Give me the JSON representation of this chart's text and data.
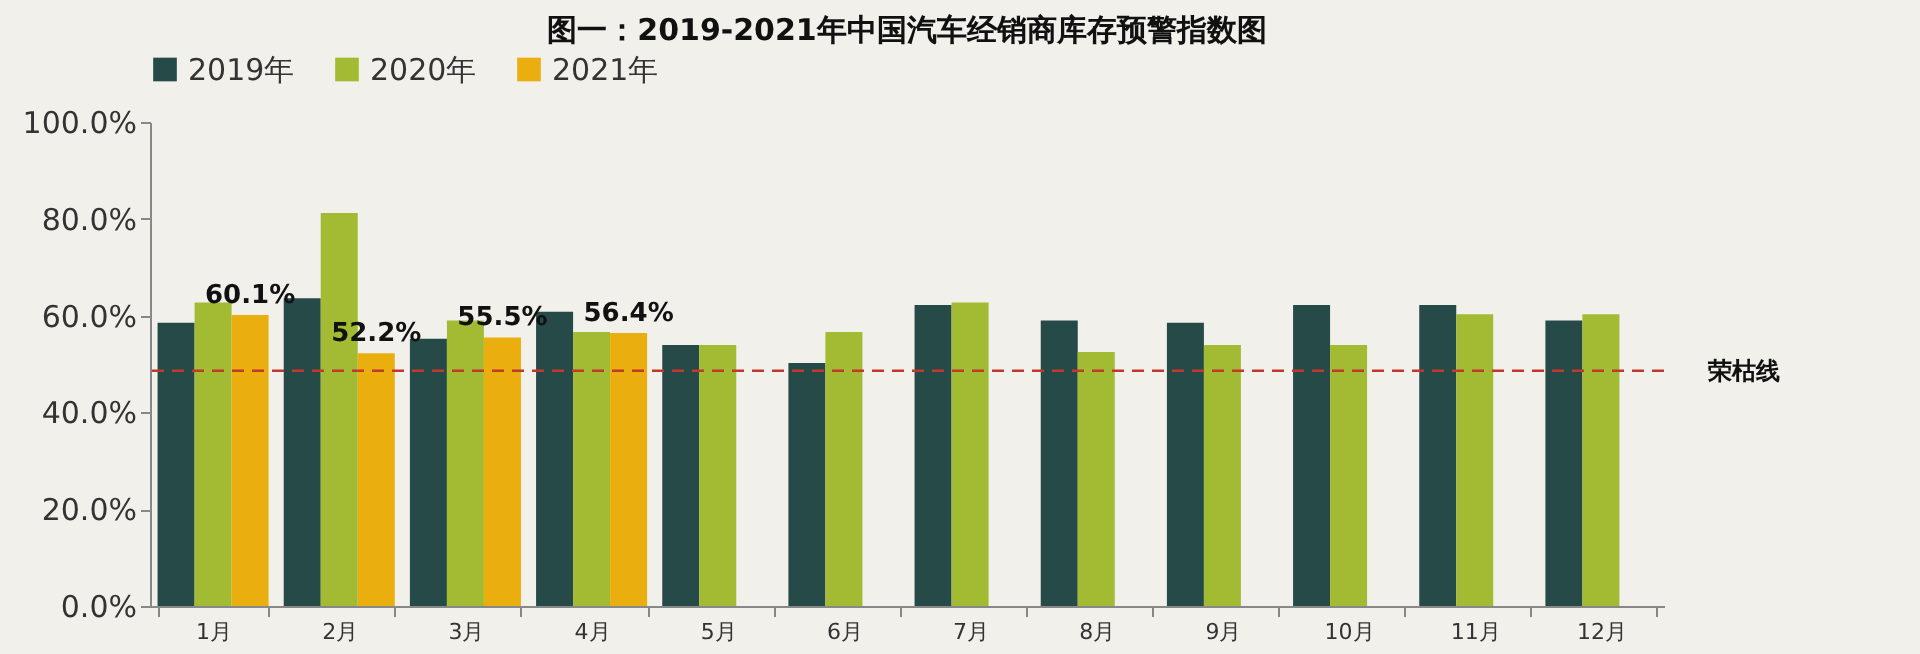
{
  "chart_data": {
    "type": "bar",
    "title": "图一：2019-2021年中国汽车经销商库存预警指数图",
    "categories": [
      "1月",
      "2月",
      "3月",
      "4月",
      "5月",
      "6月",
      "7月",
      "8月",
      "9月",
      "10月",
      "11月",
      "12月"
    ],
    "series": [
      {
        "name": "2019年",
        "color": "#264a48",
        "values": [
          58.5,
          63.6,
          55.2,
          60.8,
          53.9,
          50.2,
          62.2,
          59.0,
          58.5,
          62.2,
          62.2,
          59.0
        ]
      },
      {
        "name": "2020年",
        "color": "#a3bb33",
        "values": [
          62.7,
          81.2,
          59.0,
          56.6,
          53.9,
          56.6,
          62.7,
          52.5,
          53.9,
          53.9,
          60.3,
          60.3
        ]
      },
      {
        "name": "2021年",
        "color": "#eaae0f",
        "values": [
          60.1,
          52.2,
          55.5,
          56.4,
          null,
          null,
          null,
          null,
          null,
          null,
          null,
          null
        ],
        "value_labels": [
          "60.1%",
          "52.2%",
          "55.5%",
          "56.4%",
          null,
          null,
          null,
          null,
          null,
          null,
          null,
          null
        ]
      }
    ],
    "ylim": [
      0,
      100
    ],
    "yticks": [
      {
        "value": 0,
        "label": "0.0%"
      },
      {
        "value": 20,
        "label": "20.0%"
      },
      {
        "value": 40,
        "label": "40.0%"
      },
      {
        "value": 60,
        "label": "60.0%"
      },
      {
        "value": 80,
        "label": "80.0%"
      },
      {
        "value": 100,
        "label": "100.0%"
      }
    ],
    "ref_lines": [
      {
        "axis": "y",
        "value": 48.6,
        "label": "荣枯线",
        "color": "#c0392b",
        "line_style": "dashed"
      }
    ],
    "legend": "top",
    "grid": false
  }
}
